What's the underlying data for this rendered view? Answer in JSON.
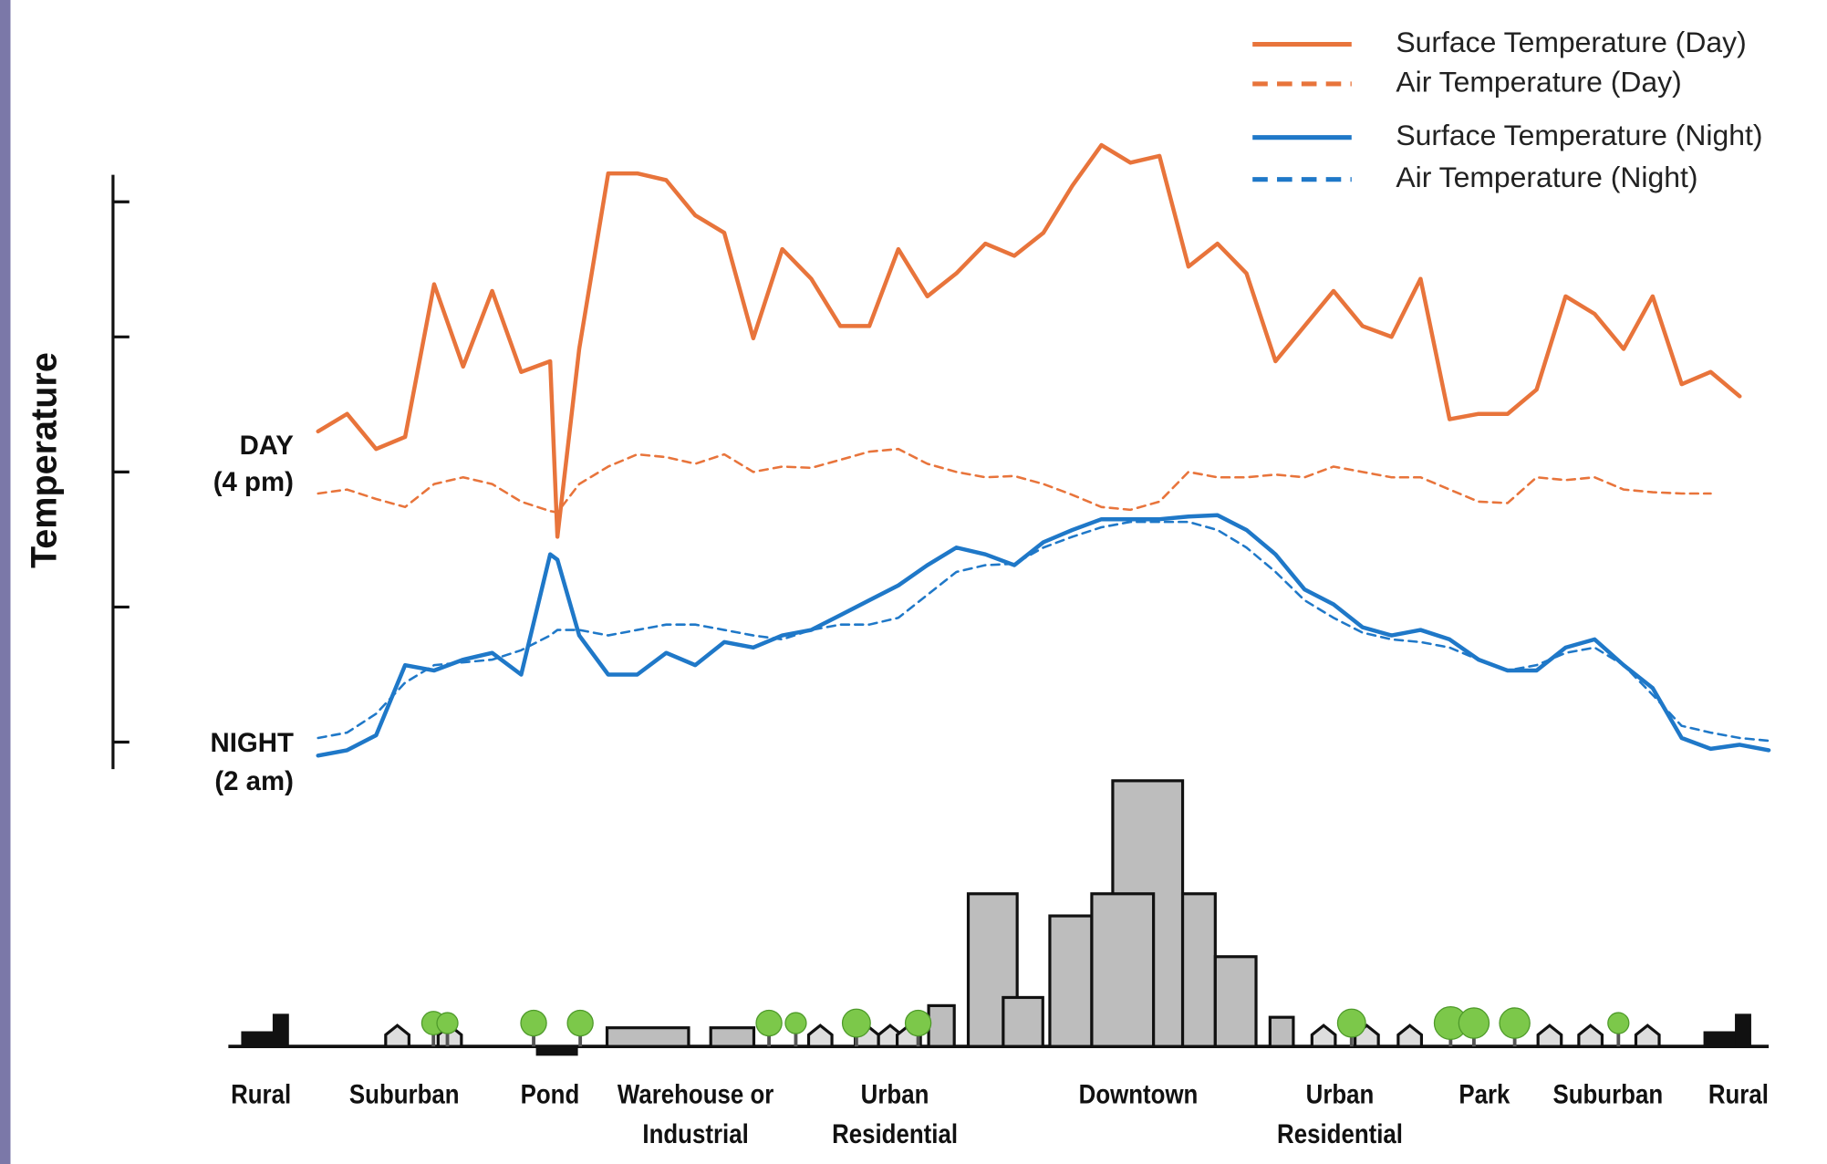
{
  "chart_data": {
    "type": "line",
    "y_label": "Temperature",
    "annotations": [
      "DAY",
      "(4 pm)",
      "NIGHT",
      "(2 am)"
    ],
    "categories": [
      "Rural",
      "Suburban",
      "Pond",
      "Warehouse or Industrial",
      "Urban Residential",
      "Downtown",
      "Urban Residential",
      "Park",
      "Suburban",
      "Rural"
    ],
    "xlim": [
      0,
      100
    ],
    "ylim": [
      -0.2,
      4.2
    ],
    "yticks": [
      0,
      1,
      2,
      3,
      4
    ],
    "x": [
      0,
      2,
      4,
      6,
      8,
      10,
      12,
      14,
      16,
      16.5,
      18,
      20,
      22,
      24,
      26,
      28,
      30,
      32,
      34,
      36,
      38,
      40,
      42,
      44,
      46,
      48,
      50,
      52,
      54,
      56,
      58,
      60,
      62,
      64,
      66,
      68,
      70,
      72,
      74,
      76,
      78,
      80,
      82,
      84,
      86,
      88,
      90,
      92,
      94,
      96,
      98,
      100
    ],
    "series": [
      {
        "name": "Surface Temperature (Day)",
        "color": "#e8743b",
        "dashed": false,
        "values": [
          2.3,
          2.43,
          2.17,
          2.26,
          3.39,
          2.78,
          3.34,
          2.74,
          2.82,
          1.52,
          2.91,
          4.21,
          4.21,
          4.16,
          3.9,
          3.77,
          2.99,
          3.65,
          3.43,
          3.08,
          3.08,
          3.65,
          3.3,
          3.47,
          3.69,
          3.6,
          3.77,
          4.12,
          4.42,
          4.29,
          4.34,
          3.52,
          3.69,
          3.47,
          2.82,
          3.08,
          3.34,
          3.08,
          3.0,
          3.43,
          2.39,
          2.43,
          2.43,
          2.61,
          3.3,
          3.17,
          2.91,
          3.3,
          2.65,
          2.74,
          2.56,
          null
        ]
      },
      {
        "name": "Air Temperature  (Day)",
        "color": "#e8743b",
        "dashed": true,
        "values": [
          1.84,
          1.87,
          1.8,
          1.74,
          1.91,
          1.96,
          1.91,
          1.78,
          1.71,
          1.7,
          1.91,
          2.04,
          2.13,
          2.11,
          2.06,
          2.13,
          2.0,
          2.04,
          2.03,
          2.09,
          2.15,
          2.17,
          2.06,
          2.0,
          1.96,
          1.97,
          1.91,
          1.83,
          1.74,
          1.72,
          1.78,
          2.0,
          1.96,
          1.96,
          1.98,
          1.96,
          2.04,
          2.0,
          1.96,
          1.96,
          1.87,
          1.78,
          1.77,
          1.96,
          1.94,
          1.96,
          1.87,
          1.85,
          1.84,
          1.84,
          null,
          null
        ]
      },
      {
        "name": "Surface Temperature (Night)",
        "color": "#1f78c8",
        "dashed": false,
        "values": [
          -0.1,
          -0.06,
          0.05,
          0.57,
          0.53,
          0.61,
          0.66,
          0.5,
          1.39,
          1.35,
          0.79,
          0.5,
          0.5,
          0.66,
          0.57,
          0.74,
          0.7,
          0.79,
          0.83,
          0.94,
          1.05,
          1.16,
          1.31,
          1.44,
          1.39,
          1.31,
          1.48,
          1.57,
          1.65,
          1.65,
          1.65,
          1.67,
          1.68,
          1.57,
          1.39,
          1.13,
          1.02,
          0.85,
          0.79,
          0.83,
          0.76,
          0.61,
          0.53,
          0.53,
          0.7,
          0.76,
          0.57,
          0.4,
          0.03,
          -0.05,
          -0.02,
          -0.06
        ]
      },
      {
        "name": "Air Temperature (Night)",
        "color": "#1f78c8",
        "dashed": true,
        "values": [
          0.03,
          0.07,
          0.21,
          0.44,
          0.57,
          0.59,
          0.61,
          0.68,
          0.79,
          0.83,
          0.83,
          0.79,
          0.83,
          0.87,
          0.87,
          0.83,
          0.79,
          0.76,
          0.83,
          0.87,
          0.87,
          0.92,
          1.09,
          1.26,
          1.31,
          1.32,
          1.44,
          1.52,
          1.59,
          1.63,
          1.63,
          1.63,
          1.57,
          1.44,
          1.26,
          1.05,
          0.92,
          0.81,
          0.76,
          0.74,
          0.7,
          0.61,
          0.53,
          0.57,
          0.66,
          0.7,
          0.57,
          0.35,
          0.12,
          0.07,
          0.03,
          0.01
        ]
      }
    ]
  }
}
